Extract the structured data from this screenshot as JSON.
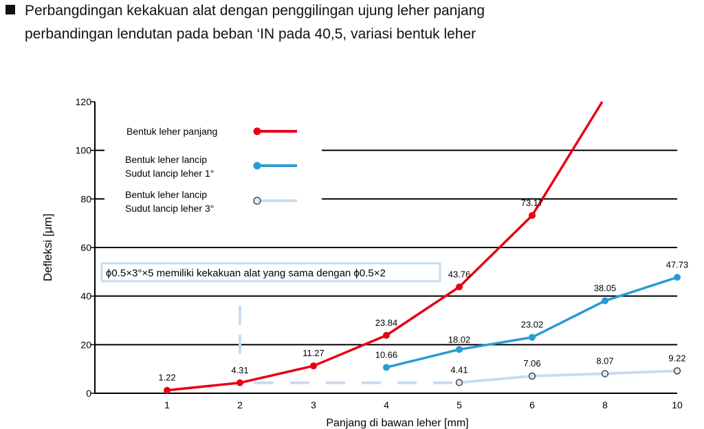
{
  "header": {
    "line1": "Perbangdingan kekakuan alat dengan penggilingan ujung leher panjang",
    "line2": "perbandingan lendutan pada beban ‘IN pada 40,5, variasi bentuk leher"
  },
  "chart_data": {
    "type": "line",
    "title": "",
    "xlabel": "Panjang di bawan leher [mm]",
    "ylabel": "Defleksi [μm]",
    "categories": [
      "1",
      "2",
      "3",
      "4",
      "5",
      "6",
      "8",
      "10"
    ],
    "ylim": [
      0,
      120
    ],
    "yticks": [
      0,
      20,
      40,
      60,
      80,
      100,
      120
    ],
    "grid": "horizontal",
    "legend_position": "top-left",
    "series": [
      {
        "name": "Bentuk leher panjang",
        "color": "#e60012",
        "marker": "filled",
        "values": [
          1.22,
          4.31,
          11.27,
          23.84,
          43.76,
          73.17,
          120,
          null
        ],
        "labels": [
          "1.22",
          "4.31",
          "11.27",
          "23.84",
          "43.76",
          "73.17",
          "",
          ""
        ]
      },
      {
        "name": "Bentuk leher lancip\nSudut lancip leher 1°",
        "name_lines": [
          "Bentuk leher lancip",
          "Sudut lancip leher 1°"
        ],
        "color": "#2a9ad6",
        "marker": "filled",
        "values": [
          null,
          null,
          null,
          10.66,
          18.02,
          23.02,
          38.05,
          47.73
        ],
        "labels": [
          "",
          "",
          "",
          "10.66",
          "18.02",
          "23.02",
          "38.05",
          "47.73"
        ]
      },
      {
        "name": "Bentuk leher lancip\nSudut lancip leher 3°",
        "name_lines": [
          "Bentuk leher lancip",
          "Sudut lancip leher 3°"
        ],
        "color": "#c8dcf0",
        "marker": "open",
        "values": [
          null,
          null,
          null,
          null,
          4.41,
          7.06,
          8.07,
          9.22
        ],
        "labels": [
          "",
          "",
          "",
          "",
          "4.41",
          "7.06",
          "8.07",
          "9.22"
        ]
      }
    ],
    "annotation": "ϕ0.5×3°×5 memiliki kekakuan alat yang sama dengan ϕ0.5×2"
  }
}
